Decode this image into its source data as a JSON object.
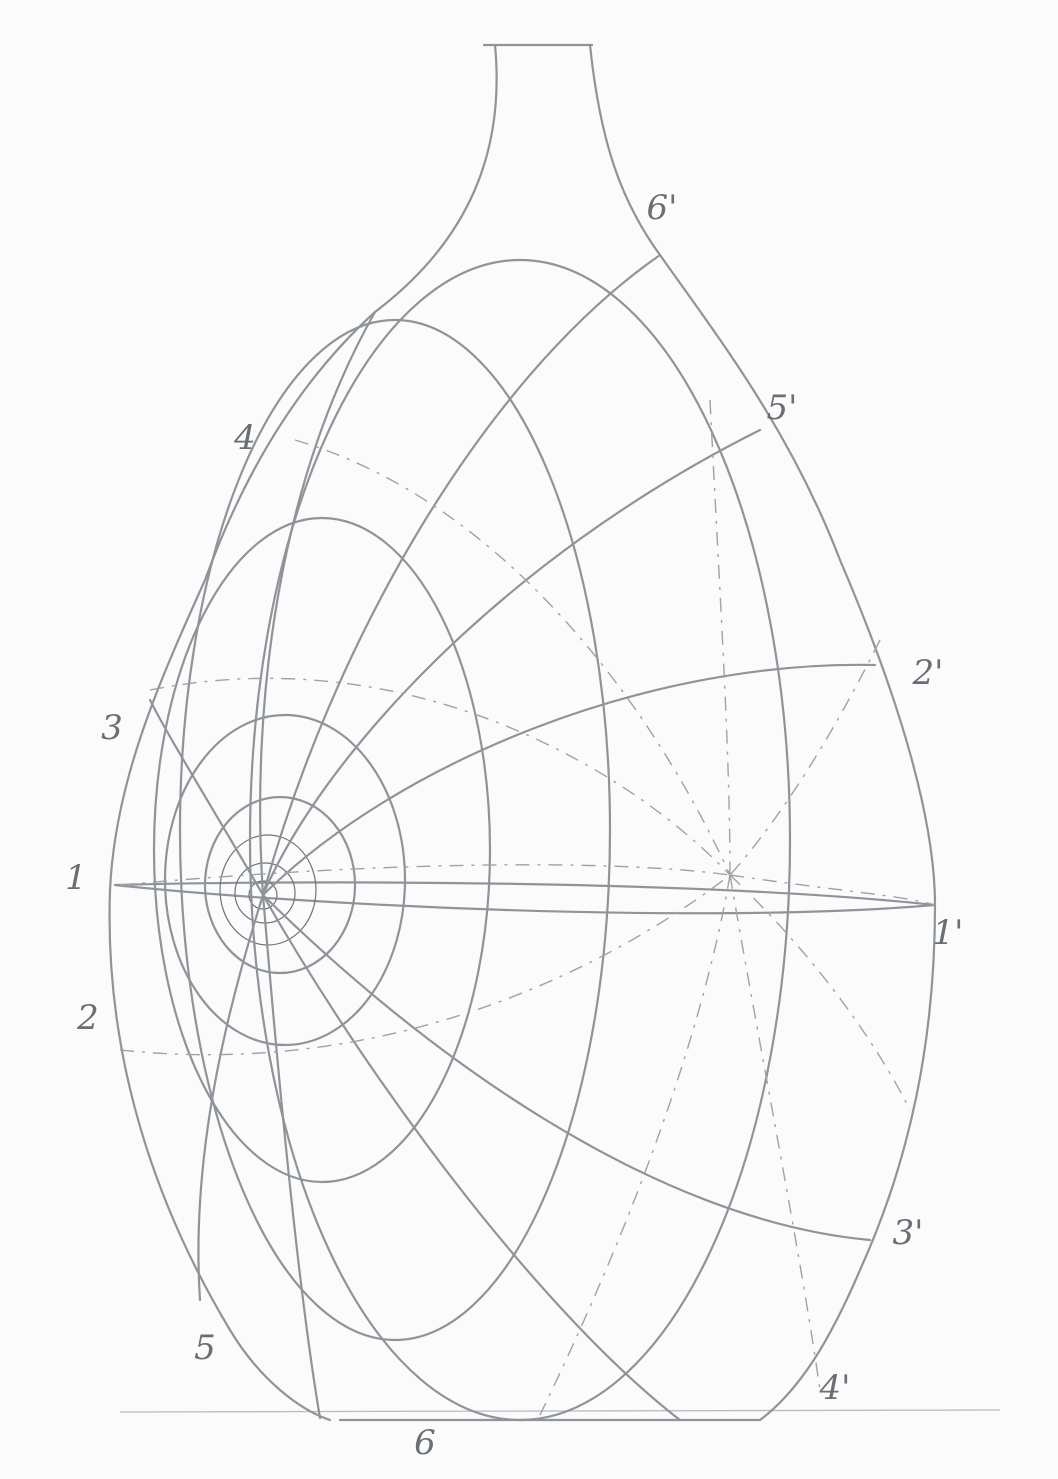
{
  "labels": {
    "p6prime": "6'",
    "p5prime": "5'",
    "p4": "4",
    "p3": "3",
    "p2prime": "2'",
    "p1": "1",
    "p1prime": "1'",
    "p2": "2",
    "p3prime": "3'",
    "p5": "5",
    "p4prime": "4'",
    "p6": "6"
  }
}
